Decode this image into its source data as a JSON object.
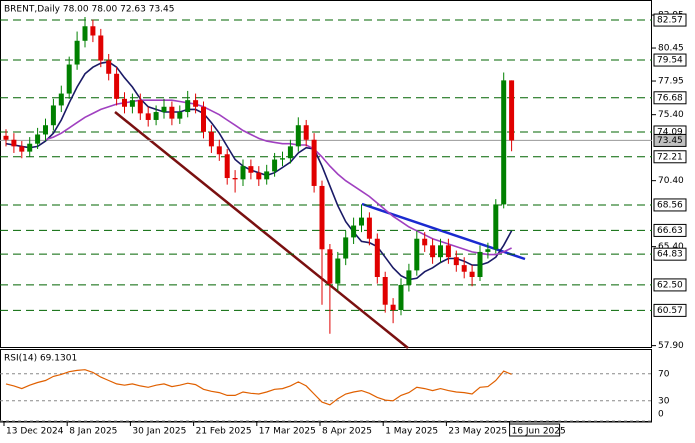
{
  "chart_data": {
    "type": "candlestick",
    "title": "BRENT,Daily 78.00 78.00 72.63 73.45",
    "categories": [
      "13 Dec 2024",
      null,
      null,
      null,
      null,
      null,
      null,
      null,
      "8 Jan 2025",
      null,
      null,
      null,
      null,
      null,
      null,
      null,
      "30 Jan 2025",
      null,
      null,
      null,
      null,
      null,
      null,
      null,
      "21 Feb 2025",
      null,
      null,
      null,
      null,
      null,
      null,
      null,
      "17 Mar 2025",
      null,
      null,
      null,
      null,
      null,
      null,
      null,
      "8 Apr 2025",
      null,
      null,
      null,
      null,
      null,
      null,
      null,
      "1 May 2025",
      null,
      null,
      null,
      null,
      null,
      null,
      null,
      "23 May 2025",
      null,
      null,
      null,
      null,
      null,
      null,
      null,
      "16 Jun 2025"
    ],
    "ohlc": [
      [
        73.8,
        74.3,
        73.0,
        73.5
      ],
      [
        73.5,
        74.0,
        72.5,
        73.0
      ],
      [
        73.0,
        73.4,
        72.1,
        72.6
      ],
      [
        72.6,
        73.7,
        72.2,
        73.2
      ],
      [
        73.2,
        74.4,
        72.8,
        73.9
      ],
      [
        73.9,
        75.1,
        73.4,
        74.6
      ],
      [
        74.6,
        76.6,
        74.2,
        76.1
      ],
      [
        76.1,
        77.6,
        75.6,
        77.0
      ],
      [
        77.0,
        79.8,
        76.6,
        79.2
      ],
      [
        79.2,
        81.7,
        78.8,
        81.0
      ],
      [
        81.0,
        82.8,
        80.5,
        82.1
      ],
      [
        82.1,
        82.6,
        80.9,
        81.4
      ],
      [
        81.4,
        81.9,
        79.0,
        79.5
      ],
      [
        79.5,
        80.0,
        78.0,
        78.5
      ],
      [
        78.5,
        79.0,
        76.1,
        76.6
      ],
      [
        76.6,
        77.1,
        75.5,
        76.0
      ],
      [
        76.0,
        77.0,
        75.5,
        76.5
      ],
      [
        76.5,
        77.0,
        75.0,
        75.5
      ],
      [
        75.5,
        76.0,
        74.5,
        75.0
      ],
      [
        75.0,
        76.1,
        74.6,
        75.6
      ],
      [
        75.6,
        76.6,
        75.1,
        76.0
      ],
      [
        76.0,
        76.4,
        74.6,
        75.1
      ],
      [
        75.1,
        76.1,
        74.7,
        75.6
      ],
      [
        75.6,
        77.2,
        75.2,
        76.5
      ],
      [
        76.5,
        77.0,
        75.5,
        76.0
      ],
      [
        76.0,
        76.4,
        73.6,
        74.1
      ],
      [
        74.1,
        74.6,
        72.5,
        73.0
      ],
      [
        73.0,
        73.5,
        71.9,
        72.4
      ],
      [
        72.4,
        72.8,
        70.1,
        70.6
      ],
      [
        70.6,
        71.2,
        69.5,
        70.5
      ],
      [
        70.5,
        72.0,
        70.0,
        71.5
      ],
      [
        71.5,
        72.0,
        70.5,
        71.0
      ],
      [
        71.0,
        71.5,
        70.0,
        70.5
      ],
      [
        70.5,
        71.6,
        70.1,
        71.1
      ],
      [
        71.1,
        72.5,
        70.7,
        72.0
      ],
      [
        72.0,
        72.6,
        71.5,
        72.1
      ],
      [
        72.1,
        73.5,
        71.7,
        73.0
      ],
      [
        73.0,
        75.2,
        72.6,
        74.6
      ],
      [
        74.6,
        75.0,
        73.0,
        73.5
      ],
      [
        73.5,
        74.0,
        69.5,
        70.0
      ],
      [
        70.0,
        70.4,
        61.0,
        65.2
      ],
      [
        65.2,
        65.6,
        58.8,
        62.6
      ],
      [
        62.6,
        65.0,
        62.0,
        64.5
      ],
      [
        64.5,
        66.6,
        64.0,
        66.1
      ],
      [
        66.1,
        67.6,
        65.6,
        67.0
      ],
      [
        67.0,
        68.6,
        66.5,
        67.6
      ],
      [
        67.6,
        68.0,
        65.5,
        66.0
      ],
      [
        66.0,
        66.4,
        62.6,
        63.1
      ],
      [
        63.1,
        63.5,
        60.4,
        61.0
      ],
      [
        61.0,
        61.5,
        59.6,
        60.6
      ],
      [
        60.6,
        63.0,
        60.2,
        62.5
      ],
      [
        62.5,
        64.1,
        62.0,
        63.6
      ],
      [
        63.6,
        66.6,
        63.2,
        66.0
      ],
      [
        66.0,
        66.5,
        65.0,
        65.5
      ],
      [
        65.5,
        66.0,
        64.1,
        64.6
      ],
      [
        64.6,
        66.0,
        64.2,
        65.5
      ],
      [
        65.5,
        66.0,
        64.1,
        64.6
      ],
      [
        64.6,
        65.1,
        63.5,
        64.0
      ],
      [
        64.0,
        64.6,
        63.0,
        63.5
      ],
      [
        63.5,
        64.0,
        62.4,
        63.1
      ],
      [
        63.1,
        65.5,
        62.8,
        65.0
      ],
      [
        65.0,
        65.7,
        64.5,
        65.2
      ],
      [
        65.2,
        69.0,
        64.9,
        68.6
      ],
      [
        68.6,
        78.6,
        68.3,
        78.0
      ],
      [
        78.0,
        78.0,
        72.63,
        73.45
      ]
    ],
    "up_color": "#008000",
    "down_color": "#e00000",
    "series": [
      {
        "color": "#1a1a66",
        "values": [
          73.2,
          73.1,
          73.0,
          72.9,
          73.0,
          73.4,
          74.0,
          75.0,
          76.3,
          77.5,
          78.5,
          79.0,
          79.3,
          79.4,
          79.0,
          78.2,
          77.5,
          76.6,
          76.0,
          75.8,
          75.6,
          75.6,
          75.6,
          75.8,
          75.8,
          75.5,
          74.8,
          74.0,
          73.0,
          72.0,
          71.5,
          71.2,
          71.0,
          70.8,
          71.0,
          71.4,
          71.8,
          72.5,
          72.9,
          72.8,
          71.5,
          70.0,
          68.5,
          67.3,
          66.5,
          65.8,
          65.7,
          65.4,
          64.6,
          63.8,
          63.2,
          62.9,
          63.0,
          63.5,
          63.8,
          64.2,
          64.5,
          64.5,
          64.3,
          64.0,
          64.0,
          64.2,
          64.6,
          65.5,
          66.6
        ]
      },
      {
        "color": "#a040c0",
        "values": [
          null,
          null,
          null,
          null,
          null,
          73.5,
          73.7,
          74.0,
          74.4,
          74.8,
          75.2,
          75.5,
          75.8,
          76.0,
          76.2,
          76.3,
          76.4,
          76.5,
          76.5,
          76.5,
          76.5,
          76.5,
          76.4,
          76.3,
          76.2,
          76.0,
          75.7,
          75.4,
          75.0,
          74.6,
          74.2,
          73.9,
          73.6,
          73.4,
          73.3,
          73.2,
          73.2,
          73.1,
          73.1,
          72.8,
          72.2,
          71.5,
          70.9,
          70.4,
          70.0,
          69.6,
          69.2,
          68.7,
          68.2,
          67.7,
          67.3,
          66.9,
          66.6,
          66.3,
          66.0,
          65.8,
          65.6,
          65.4,
          65.2,
          65.0,
          64.9,
          64.8,
          64.8,
          65.0,
          65.3
        ]
      }
    ],
    "ylim": [
      57.72,
      84.09
    ],
    "yticks": [
      82.95,
      80.45,
      77.95,
      {
        "value": 75.4,
        "label": "75.40"
      },
      {
        "value": 70.4,
        "label": "70.40"
      },
      {
        "value": 65.4,
        "label": "65.40"
      },
      {
        "value": 57.9,
        "label": "57.90"
      }
    ],
    "levels": [
      82.57,
      79.54,
      76.68,
      74.09,
      72.21,
      68.56,
      66.63,
      64.83,
      {
        "value": 62.5,
        "label": "62.50"
      },
      60.57
    ],
    "level_color": "#006400",
    "rsi": {
      "title": "RSI(14) 69.1301",
      "color": "#e06000",
      "ylim": [
        0,
        100
      ],
      "yticks": [
        70,
        30,
        0
      ],
      "values": [
        55,
        52,
        48,
        53,
        57,
        60,
        66,
        69,
        73,
        75,
        76,
        72,
        65,
        60,
        55,
        53,
        55,
        52,
        50,
        53,
        55,
        51,
        53,
        56,
        54,
        47,
        44,
        42,
        38,
        38,
        43,
        41,
        40,
        43,
        47,
        48,
        52,
        58,
        52,
        40,
        28,
        24,
        33,
        40,
        43,
        45,
        41,
        35,
        31,
        30,
        38,
        42,
        50,
        48,
        45,
        48,
        45,
        43,
        42,
        40,
        50,
        51,
        60,
        74,
        69.13
      ]
    }
  }
}
